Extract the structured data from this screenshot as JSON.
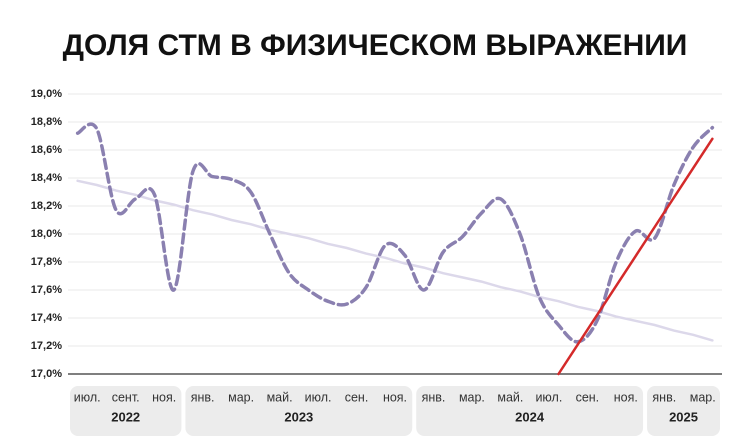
{
  "chart_data": {
    "type": "line",
    "title": "ДОЛЯ СТМ В ФИЗИЧЕСКОМ ВЫРАЖЕНИИ",
    "categories": [
      "июл.",
      null,
      "сент.",
      null,
      "ноя.",
      null,
      "янв.",
      null,
      "мар.",
      null,
      "май.",
      null,
      "июл.",
      null,
      "сен.",
      null,
      "ноя.",
      null,
      "янв.",
      null,
      "мар.",
      null,
      "май.",
      null,
      "июл.",
      null,
      "сен.",
      null,
      "ноя.",
      null,
      "янв.",
      null,
      "мар.",
      null
    ],
    "years": [
      "2022",
      "2022",
      "2022",
      "2022",
      "2022",
      "2022",
      "2023",
      "2023",
      "2023",
      "2023",
      "2023",
      "2023",
      "2023",
      "2023",
      "2023",
      "2023",
      "2023",
      "2023",
      "2024",
      "2024",
      "2024",
      "2024",
      "2024",
      "2024",
      "2024",
      "2024",
      "2024",
      "2024",
      "2024",
      "2024",
      "2025",
      "2025",
      "2025",
      "2025"
    ],
    "series": [
      {
        "color": "#dcd8ea",
        "style": "solid",
        "values": [
          18.38,
          18.35,
          18.31,
          18.28,
          18.24,
          18.21,
          18.17,
          18.14,
          18.1,
          18.07,
          18.03,
          18.0,
          17.97,
          17.93,
          17.9,
          17.86,
          17.83,
          17.79,
          17.76,
          17.72,
          17.69,
          17.66,
          17.62,
          17.59,
          17.55,
          17.52,
          17.48,
          17.45,
          17.41,
          17.38,
          17.35,
          17.31,
          17.28,
          17.24
        ]
      },
      {
        "color": "#8a80b0",
        "style": "dashed",
        "values": [
          18.72,
          18.75,
          18.17,
          18.25,
          18.28,
          17.6,
          18.45,
          18.41,
          18.39,
          18.3,
          18.0,
          17.72,
          17.6,
          17.52,
          17.5,
          17.62,
          17.92,
          17.85,
          17.6,
          17.87,
          17.98,
          18.15,
          18.25,
          18.0,
          17.55,
          17.35,
          17.23,
          17.38,
          17.8,
          18.02,
          17.97,
          18.35,
          18.62,
          18.76
        ]
      },
      {
        "color": "#d42a2a",
        "style": "solid",
        "values": [
          null,
          null,
          null,
          null,
          null,
          null,
          null,
          null,
          null,
          null,
          null,
          null,
          null,
          null,
          null,
          null,
          null,
          null,
          null,
          null,
          null,
          null,
          null,
          null,
          null,
          17.0,
          17.21,
          17.42,
          17.63,
          17.84,
          18.05,
          18.26,
          18.47,
          18.68
        ]
      }
    ],
    "ylim": [
      17.0,
      19.0
    ],
    "yticks": [
      {
        "value": 17.0,
        "label": "17,0%"
      },
      {
        "value": 17.2,
        "label": "17,2%"
      },
      {
        "value": 17.4,
        "label": "17,4%"
      },
      {
        "value": 17.6,
        "label": "17,6%"
      },
      {
        "value": 17.8,
        "label": "17,8%"
      },
      {
        "value": 18.0,
        "label": "18,0%"
      },
      {
        "value": 18.2,
        "label": "18,2%"
      },
      {
        "value": 18.4,
        "label": "18,4%"
      },
      {
        "value": 18.6,
        "label": "18,6%"
      },
      {
        "value": 18.8,
        "label": "18,8%"
      },
      {
        "value": 19.0,
        "label": "19,0%"
      }
    ],
    "grid": true
  }
}
